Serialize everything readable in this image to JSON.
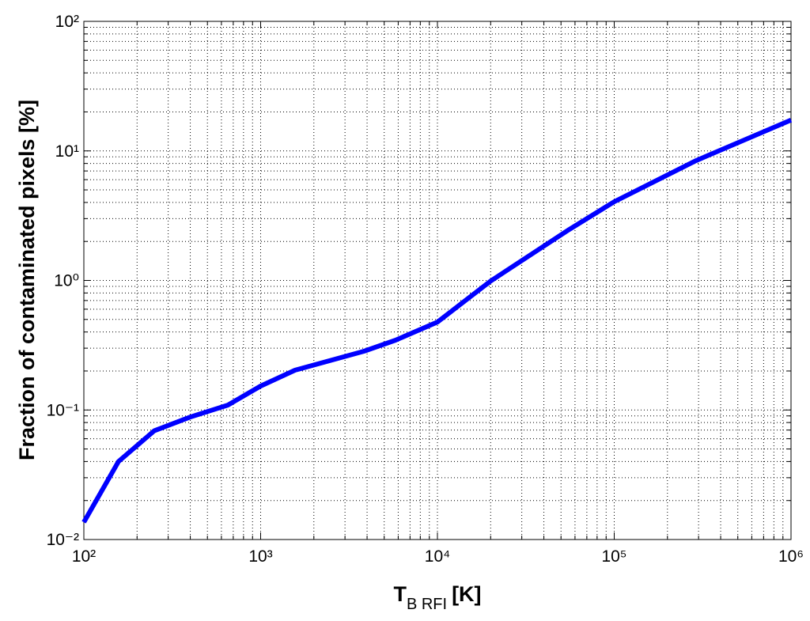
{
  "chart_data": {
    "type": "line",
    "xlabel": {
      "main": "T",
      "sub": "B RFI",
      "unit": "[K]"
    },
    "ylabel": "Fraction of contaminated pixels [%]",
    "log_x": true,
    "log_y": true,
    "grid": true,
    "xlim": [
      100,
      1000000
    ],
    "ylim": [
      0.01,
      100
    ],
    "xticks": [
      {
        "value": 100,
        "label": "10²"
      },
      {
        "value": 1000,
        "label": "10³"
      },
      {
        "value": 10000,
        "label": "10⁴"
      },
      {
        "value": 100000,
        "label": "10⁵"
      },
      {
        "value": 1000000,
        "label": "10⁶"
      }
    ],
    "yticks": [
      {
        "value": 0.01,
        "label": "10⁻²"
      },
      {
        "value": 0.1,
        "label": "10⁻¹"
      },
      {
        "value": 1,
        "label": "10⁰"
      },
      {
        "value": 10,
        "label": "10¹"
      },
      {
        "value": 100,
        "label": "10²"
      }
    ],
    "xminorticks": [
      200,
      300,
      400,
      500,
      600,
      700,
      800,
      900,
      2000,
      3000,
      4000,
      5000,
      6000,
      7000,
      8000,
      9000,
      20000,
      30000,
      40000,
      50000,
      60000,
      70000,
      80000,
      90000,
      200000,
      300000,
      400000,
      500000,
      600000,
      700000,
      800000,
      900000
    ],
    "yminorticks": [
      0.02,
      0.03,
      0.04,
      0.05,
      0.06,
      0.07,
      0.08,
      0.09,
      0.2,
      0.3,
      0.4,
      0.5,
      0.6,
      0.7,
      0.8,
      0.9,
      2,
      3,
      4,
      5,
      6,
      7,
      8,
      9,
      20,
      30,
      40,
      50,
      60,
      70,
      80,
      90
    ],
    "series": [
      {
        "color": "#0000ff",
        "x": [
          100,
          157,
          250,
          398,
          652,
          1000,
          1567,
          3840,
          5800,
          10000,
          20000,
          55800,
          100000,
          290000,
          1000000
        ],
        "values": [
          0.0136,
          0.04,
          0.069,
          0.088,
          0.109,
          0.153,
          0.203,
          0.284,
          0.346,
          0.477,
          0.99,
          2.48,
          4.05,
          8.4,
          17.3
        ]
      }
    ]
  }
}
